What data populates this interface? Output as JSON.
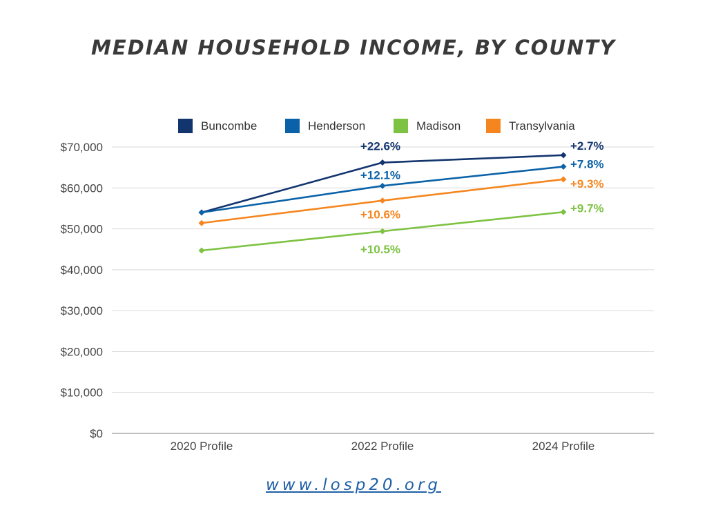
{
  "chart_data": {
    "type": "line",
    "title": "MEDIAN HOUSEHOLD INCOME, BY COUNTY",
    "categories": [
      "2020 Profile",
      "2022 Profile",
      "2024 Profile"
    ],
    "y_ticks": [
      "$0",
      "$10,000",
      "$20,000",
      "$30,000",
      "$40,000",
      "$50,000",
      "$60,000",
      "$70,000"
    ],
    "ylim": [
      0,
      70000
    ],
    "grid": true,
    "legend_position": "top",
    "series": [
      {
        "name": "Buncombe",
        "color": "#13356e",
        "values": [
          54000,
          66200,
          68000
        ],
        "labels": [
          "",
          "+22.6%",
          "+2.7%"
        ]
      },
      {
        "name": "Henderson",
        "color": "#0b62a8",
        "values": [
          54000,
          60500,
          65200
        ],
        "labels": [
          "",
          "+12.1%",
          "+7.8%"
        ]
      },
      {
        "name": "Madison",
        "color": "#7dc242",
        "values": [
          44700,
          49400,
          54100
        ],
        "labels": [
          "",
          "+10.5%",
          "+9.7%"
        ]
      },
      {
        "name": "Transylvania",
        "color": "#f5861f",
        "values": [
          51400,
          56900,
          62100
        ],
        "labels": [
          "",
          "+10.6%",
          "+9.3%"
        ]
      }
    ]
  },
  "footer": {
    "url": "www.losp20.org"
  }
}
